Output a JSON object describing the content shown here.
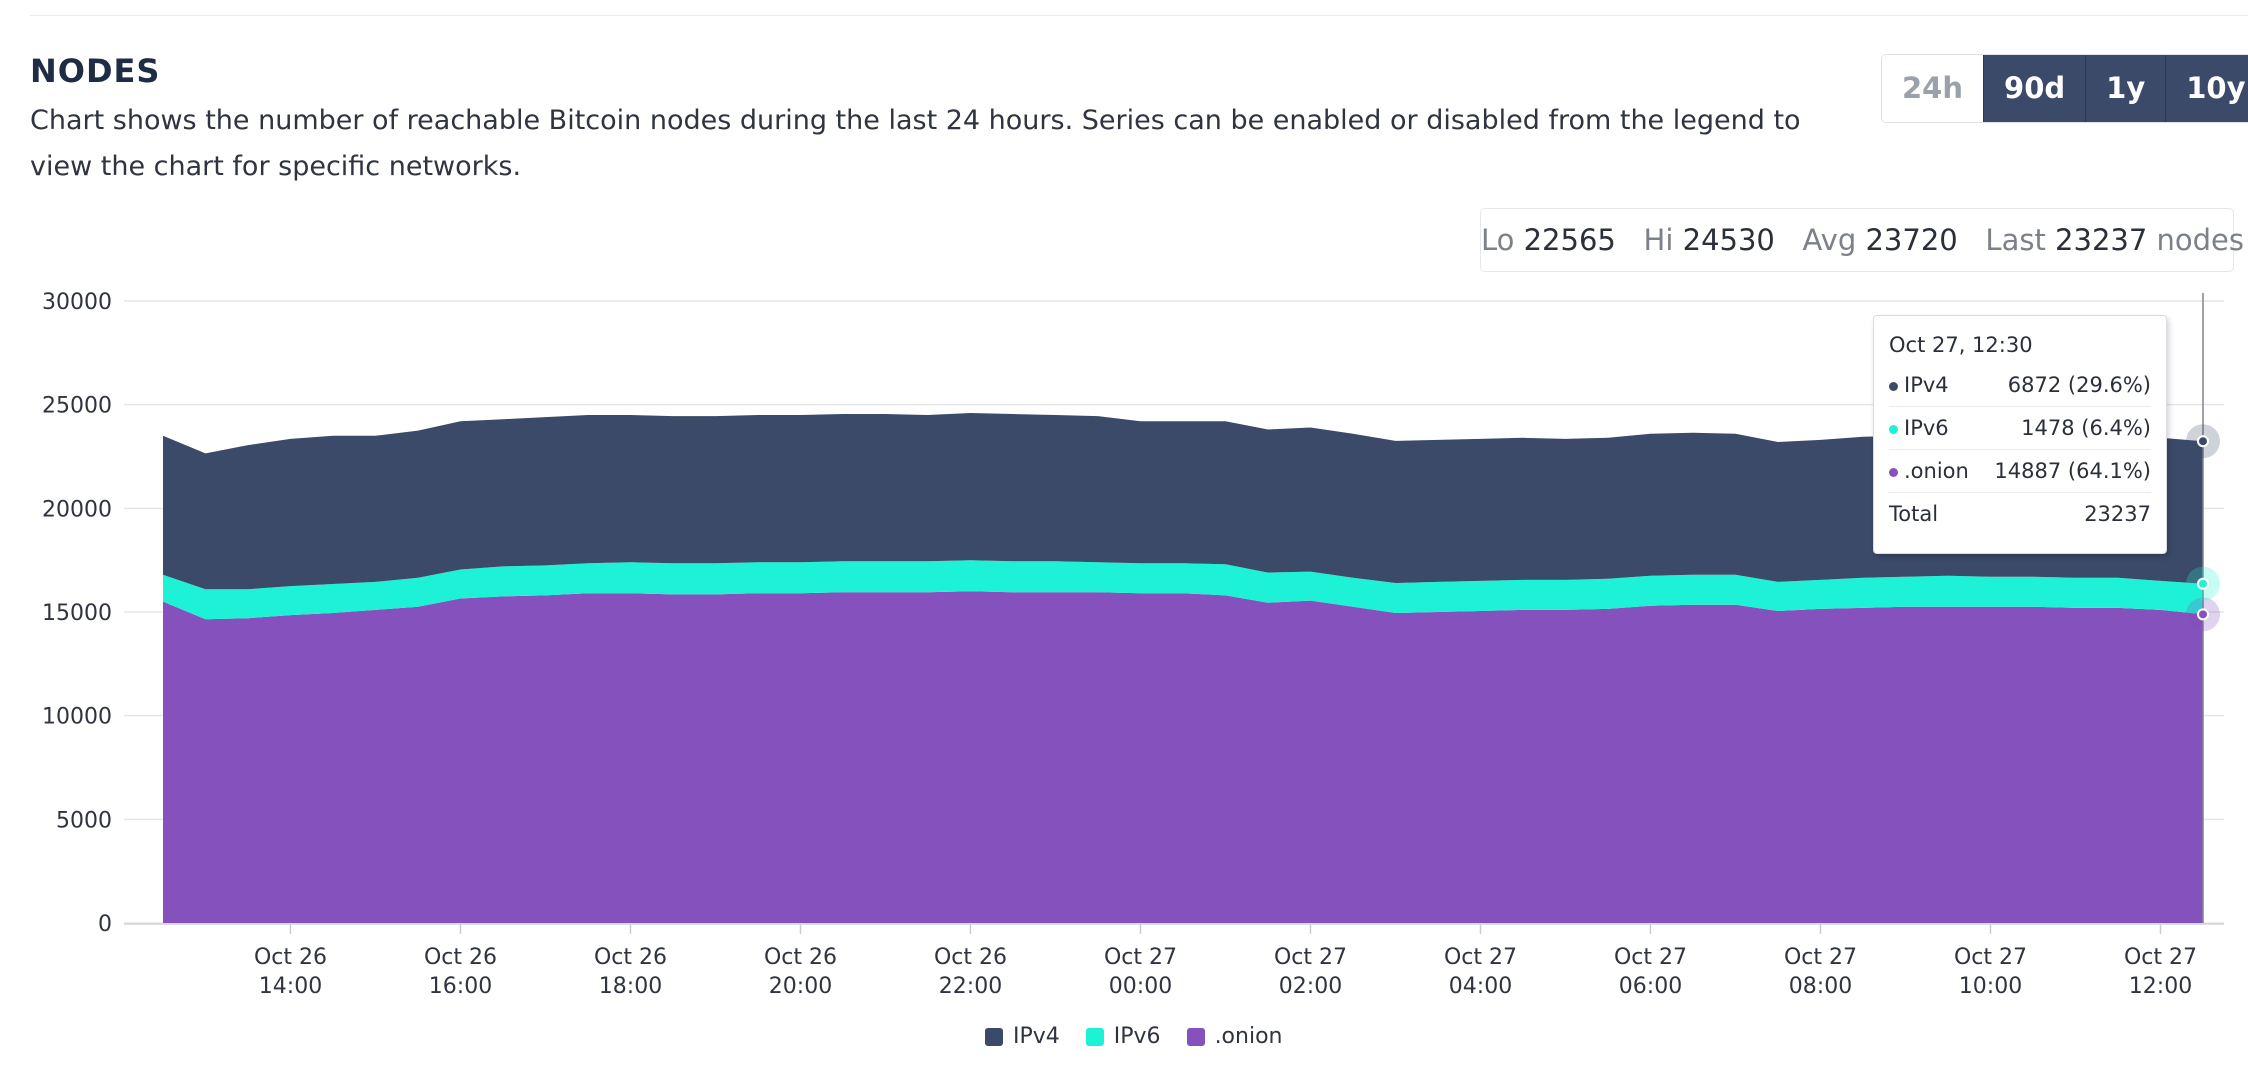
{
  "header": {
    "title": "NODES",
    "description": "Chart shows the number of reachable Bitcoin nodes during the last 24 hours. Series can be enabled or disabled from the legend to view the chart for specific networks."
  },
  "range_buttons": [
    {
      "label": "24h",
      "active": false
    },
    {
      "label": "90d",
      "active": true
    },
    {
      "label": "1y",
      "active": true
    },
    {
      "label": "10y",
      "active": true
    }
  ],
  "stats": {
    "lo_label": "Lo",
    "lo": "22565",
    "hi_label": "Hi",
    "hi": "24530",
    "avg_label": "Avg",
    "avg": "23720",
    "last_label": "Last",
    "last": "23237",
    "unit": "nodes"
  },
  "tooltip": {
    "date": "Oct 27, 12:30",
    "rows": [
      {
        "name": "IPv4",
        "value": "6872 (29.6%)"
      },
      {
        "name": "IPv6",
        "value": "1478 (6.4%)"
      },
      {
        "name": ".onion",
        "value": "14887 (64.1%)"
      }
    ],
    "total_label": "Total",
    "total": "23237"
  },
  "legend": [
    {
      "name": "IPv4",
      "color": "#3b4a68"
    },
    {
      "name": "IPv6",
      "color": "#1ef2d6"
    },
    {
      "name": ".onion",
      "color": "#8551bd"
    }
  ],
  "chart_data": {
    "type": "area",
    "stacked": true,
    "x": [
      "Oct 26 12:30",
      "Oct 26 13:00",
      "Oct 26 13:30",
      "Oct 26 14:00",
      "Oct 26 14:30",
      "Oct 26 15:00",
      "Oct 26 15:30",
      "Oct 26 16:00",
      "Oct 26 16:30",
      "Oct 26 17:00",
      "Oct 26 17:30",
      "Oct 26 18:00",
      "Oct 26 18:30",
      "Oct 26 19:00",
      "Oct 26 19:30",
      "Oct 26 20:00",
      "Oct 26 20:30",
      "Oct 26 21:00",
      "Oct 26 21:30",
      "Oct 26 22:00",
      "Oct 26 22:30",
      "Oct 26 23:00",
      "Oct 26 23:30",
      "Oct 27 00:00",
      "Oct 27 00:30",
      "Oct 27 01:00",
      "Oct 27 01:30",
      "Oct 27 02:00",
      "Oct 27 02:30",
      "Oct 27 03:00",
      "Oct 27 03:30",
      "Oct 27 04:00",
      "Oct 27 04:30",
      "Oct 27 05:00",
      "Oct 27 05:30",
      "Oct 27 06:00",
      "Oct 27 06:30",
      "Oct 27 07:00",
      "Oct 27 07:30",
      "Oct 27 08:00",
      "Oct 27 08:30",
      "Oct 27 09:00",
      "Oct 27 09:30",
      "Oct 27 10:00",
      "Oct 27 10:30",
      "Oct 27 11:00",
      "Oct 27 11:30",
      "Oct 27 12:00",
      "Oct 27 12:30"
    ],
    "series": [
      {
        "name": ".onion",
        "color": "#8551bd",
        "values": [
          15500,
          14650,
          14700,
          14850,
          14950,
          15100,
          15250,
          15650,
          15750,
          15800,
          15900,
          15900,
          15850,
          15850,
          15900,
          15900,
          15950,
          15950,
          15950,
          16000,
          15950,
          15950,
          15950,
          15900,
          15900,
          15800,
          15450,
          15550,
          15250,
          14950,
          15000,
          15050,
          15100,
          15100,
          15150,
          15300,
          15350,
          15350,
          15050,
          15150,
          15200,
          15250,
          15250,
          15250,
          15250,
          15200,
          15200,
          15100,
          14887
        ]
      },
      {
        "name": "IPv6",
        "color": "#1ef2d6",
        "values": [
          1300,
          1450,
          1400,
          1400,
          1400,
          1350,
          1400,
          1400,
          1450,
          1450,
          1450,
          1500,
          1500,
          1500,
          1500,
          1500,
          1500,
          1500,
          1500,
          1500,
          1500,
          1500,
          1450,
          1450,
          1450,
          1500,
          1450,
          1400,
          1400,
          1450,
          1450,
          1450,
          1450,
          1450,
          1450,
          1450,
          1450,
          1450,
          1400,
          1400,
          1450,
          1450,
          1500,
          1450,
          1450,
          1450,
          1450,
          1400,
          1478
        ]
      },
      {
        "name": "IPv4",
        "color": "#3b4a68",
        "values": [
          6700,
          6550,
          6950,
          7100,
          7150,
          7050,
          7100,
          7150,
          7100,
          7150,
          7150,
          7100,
          7100,
          7100,
          7100,
          7100,
          7100,
          7100,
          7050,
          7100,
          7100,
          7050,
          7050,
          6850,
          6850,
          6900,
          6900,
          6950,
          6950,
          6850,
          6850,
          6850,
          6850,
          6800,
          6800,
          6850,
          6850,
          6800,
          6750,
          6750,
          6800,
          6800,
          6800,
          6800,
          6900,
          6900,
          6900,
          6900,
          6872
        ]
      }
    ],
    "x_tick_labels": [
      {
        "date": "Oct 26",
        "time": "14:00",
        "index": 3
      },
      {
        "date": "Oct 26",
        "time": "16:00",
        "index": 7
      },
      {
        "date": "Oct 26",
        "time": "18:00",
        "index": 11
      },
      {
        "date": "Oct 26",
        "time": "20:00",
        "index": 15
      },
      {
        "date": "Oct 26",
        "time": "22:00",
        "index": 19
      },
      {
        "date": "Oct 27",
        "time": "00:00",
        "index": 23
      },
      {
        "date": "Oct 27",
        "time": "02:00",
        "index": 27
      },
      {
        "date": "Oct 27",
        "time": "04:00",
        "index": 31
      },
      {
        "date": "Oct 27",
        "time": "06:00",
        "index": 35
      },
      {
        "date": "Oct 27",
        "time": "08:00",
        "index": 39
      },
      {
        "date": "Oct 27",
        "time": "10:00",
        "index": 43
      },
      {
        "date": "Oct 27",
        "time": "12:00",
        "index": 47
      }
    ],
    "y_ticks": [
      0,
      5000,
      10000,
      15000,
      20000,
      25000,
      30000
    ],
    "ylim": [
      0,
      30000
    ],
    "grid": true,
    "legend_position": "bottom-center"
  }
}
